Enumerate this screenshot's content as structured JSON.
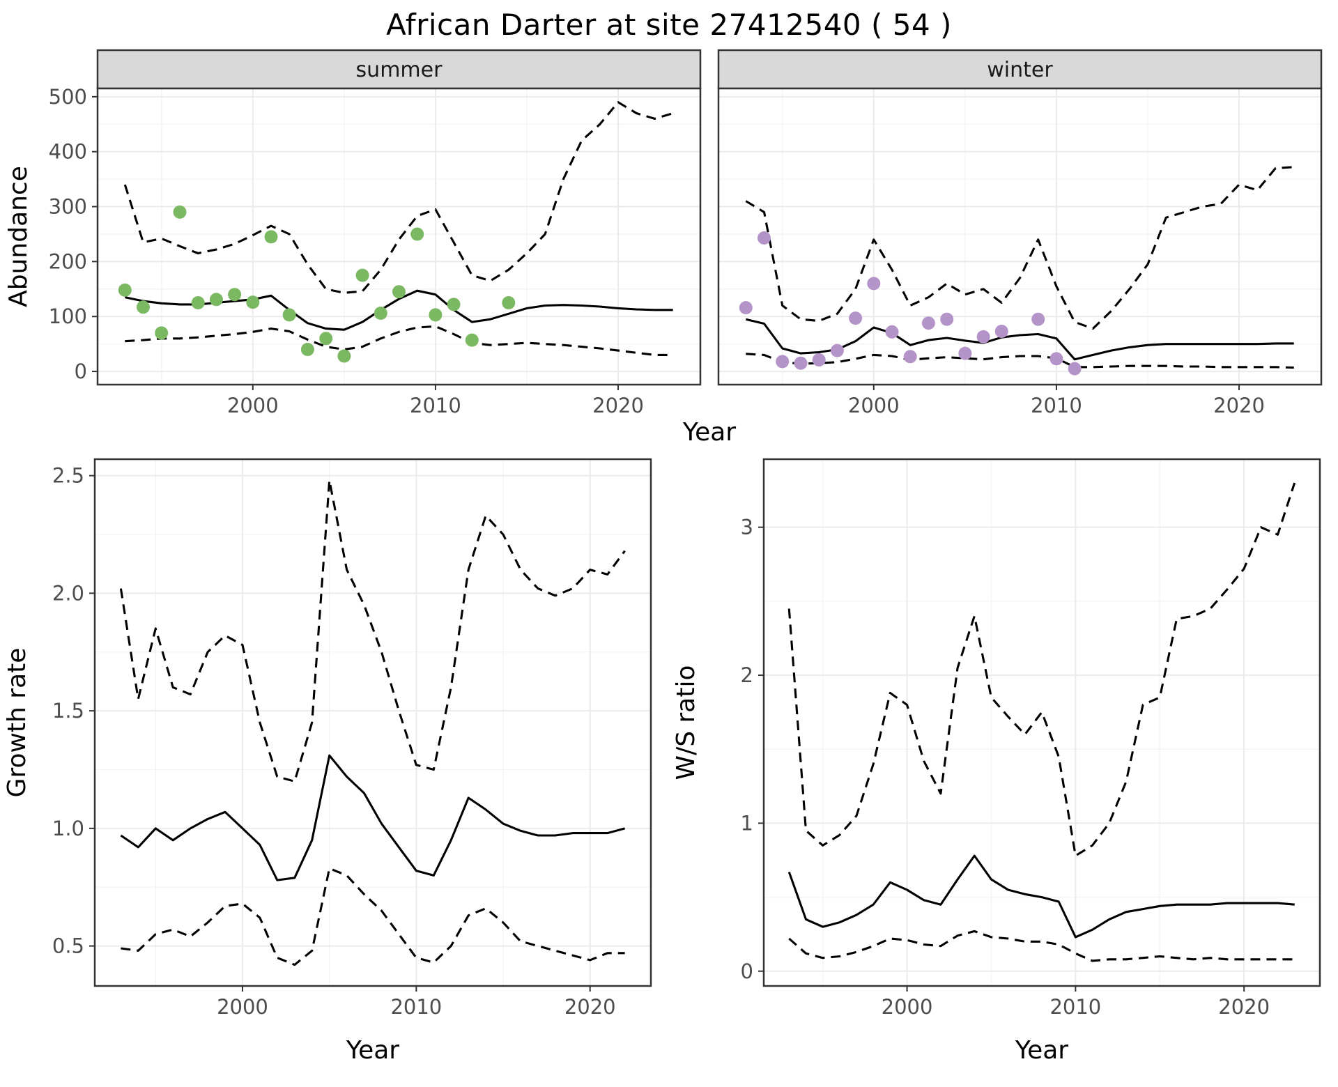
{
  "title": "African Darter at site 27412540 ( 54 )",
  "palette": {
    "summer_point": "#7ab861",
    "winter_point": "#b494c8",
    "line": "#000000",
    "panel_bg": "#ffffff",
    "panel_border": "#333333",
    "strip_bg": "#d9d9d9",
    "strip_text": "#1a1a1a",
    "grid_major": "#ebebeb",
    "grid_minor": "#f3f3f3",
    "tick_mark": "#333333",
    "tick_label": "#4d4d4d",
    "axis_title": "#000000"
  },
  "chart_data": [
    {
      "id": "abundance",
      "type": "line",
      "xlabel": "Year",
      "ylabel": "Abundance",
      "xlim": [
        1991.5,
        2024.5
      ],
      "ylim": [
        -24,
        515
      ],
      "xticks": [
        2000,
        2010,
        2020
      ],
      "xtick_labels": [
        "2000",
        "2010",
        "2020"
      ],
      "yticks": [
        0,
        100,
        200,
        300,
        400,
        500
      ],
      "ytick_labels": [
        "0",
        "100",
        "200",
        "300",
        "400",
        "500"
      ],
      "grid": "on",
      "legend": "none",
      "x_fit": [
        1993,
        1994,
        1995,
        1996,
        1997,
        1998,
        1999,
        2000,
        2001,
        2002,
        2003,
        2004,
        2005,
        2006,
        2007,
        2008,
        2009,
        2010,
        2011,
        2012,
        2013,
        2014,
        2015,
        2016,
        2017,
        2018,
        2019,
        2020,
        2021,
        2022,
        2023
      ],
      "facets": [
        {
          "label": "summer",
          "point_color": "summer_point",
          "points": {
            "x": [
              1993,
              1994,
              1995,
              1996,
              1997,
              1998,
              1999,
              2000,
              2001,
              2002,
              2003,
              2004,
              2005,
              2006,
              2007,
              2008,
              2009,
              2010,
              2011,
              2012,
              2014
            ],
            "y": [
              148,
              117,
              70,
              290,
              125,
              131,
              140,
              126,
              245,
              103,
              40,
              60,
              28,
              175,
              106,
              145,
              250,
              103,
              122,
              57,
              125
            ]
          },
          "series": [
            {
              "name": "median",
              "style": "solid",
              "y": [
                135,
                128,
                124,
                122,
                122,
                125,
                128,
                131,
                138,
                112,
                88,
                78,
                76,
                90,
                112,
                132,
                147,
                140,
                112,
                90,
                95,
                105,
                115,
                120,
                121,
                120,
                118,
                115,
                113,
                112,
                112
              ]
            },
            {
              "name": "upper_ci",
              "style": "dashed",
              "y": [
                340,
                235,
                242,
                228,
                215,
                222,
                232,
                248,
                265,
                250,
                195,
                150,
                143,
                146,
                185,
                240,
                283,
                295,
                235,
                175,
                165,
                185,
                215,
                250,
                350,
                420,
                450,
                490,
                470,
                460,
                470
              ]
            },
            {
              "name": "lower_ci",
              "style": "dashed",
              "y": [
                55,
                57,
                60,
                60,
                62,
                65,
                68,
                72,
                78,
                73,
                58,
                45,
                40,
                45,
                60,
                72,
                80,
                82,
                68,
                52,
                48,
                50,
                52,
                50,
                48,
                45,
                42,
                38,
                34,
                30,
                30
              ]
            }
          ]
        },
        {
          "label": "winter",
          "point_color": "winter_point",
          "points": {
            "x": [
              1993,
              1994,
              1995,
              1996,
              1997,
              1998,
              1999,
              2000,
              2001,
              2002,
              2003,
              2004,
              2005,
              2006,
              2007,
              2009,
              2010,
              2011
            ],
            "y": [
              116,
              243,
              18,
              15,
              21,
              38,
              97,
              160,
              72,
              27,
              88,
              95,
              33,
              63,
              73,
              95,
              23,
              5
            ]
          },
          "series": [
            {
              "name": "median",
              "style": "solid",
              "y": [
                95,
                87,
                42,
                33,
                35,
                40,
                55,
                80,
                70,
                48,
                57,
                61,
                56,
                52,
                62,
                66,
                68,
                60,
                22,
                30,
                38,
                44,
                48,
                50,
                50,
                50,
                50,
                50,
                50,
                51,
                51
              ]
            },
            {
              "name": "upper_ci",
              "style": "dashed",
              "y": [
                310,
                290,
                120,
                95,
                92,
                105,
                150,
                240,
                185,
                120,
                135,
                160,
                140,
                150,
                125,
                170,
                240,
                155,
                90,
                78,
                110,
                150,
                195,
                280,
                290,
                300,
                305,
                340,
                330,
                370,
                372
              ]
            },
            {
              "name": "lower_ci",
              "style": "dashed",
              "y": [
                32,
                30,
                17,
                14,
                15,
                17,
                23,
                30,
                28,
                21,
                24,
                26,
                24,
                22,
                26,
                28,
                28,
                24,
                8,
                8,
                9,
                10,
                10,
                10,
                9,
                9,
                8,
                8,
                8,
                8,
                7
              ]
            }
          ]
        }
      ]
    },
    {
      "id": "growth_rate",
      "type": "line",
      "xlabel": "Year",
      "ylabel": "Growth rate",
      "xlim": [
        1991.5,
        2023.5
      ],
      "ylim": [
        0.33,
        2.57
      ],
      "xticks": [
        2000,
        2010,
        2020
      ],
      "xtick_labels": [
        "2000",
        "2010",
        "2020"
      ],
      "yticks": [
        0.5,
        1.0,
        1.5,
        2.0,
        2.5
      ],
      "ytick_labels": [
        "0.5",
        "1.0",
        "1.5",
        "2.0",
        "2.5"
      ],
      "grid": "on",
      "legend": "none",
      "x": [
        1993,
        1994,
        1995,
        1996,
        1997,
        1998,
        1999,
        2000,
        2001,
        2002,
        2003,
        2004,
        2005,
        2006,
        2007,
        2008,
        2009,
        2010,
        2011,
        2012,
        2013,
        2014,
        2015,
        2016,
        2017,
        2018,
        2019,
        2020,
        2021,
        2022
      ],
      "series": [
        {
          "name": "median",
          "style": "solid",
          "y": [
            0.97,
            0.92,
            1.0,
            0.95,
            1.0,
            1.04,
            1.07,
            1.0,
            0.93,
            0.78,
            0.79,
            0.95,
            1.31,
            1.22,
            1.15,
            1.02,
            0.92,
            0.82,
            0.8,
            0.95,
            1.13,
            1.08,
            1.02,
            0.99,
            0.97,
            0.97,
            0.98,
            0.98,
            0.98,
            1.0
          ]
        },
        {
          "name": "upper_ci",
          "style": "dashed",
          "y": [
            2.02,
            1.55,
            1.85,
            1.6,
            1.57,
            1.75,
            1.82,
            1.78,
            1.45,
            1.22,
            1.2,
            1.45,
            2.48,
            2.1,
            1.95,
            1.75,
            1.5,
            1.27,
            1.25,
            1.6,
            2.1,
            2.33,
            2.25,
            2.1,
            2.02,
            1.99,
            2.02,
            2.1,
            2.08,
            2.18
          ]
        },
        {
          "name": "lower_ci",
          "style": "dashed",
          "y": [
            0.49,
            0.48,
            0.55,
            0.57,
            0.54,
            0.6,
            0.67,
            0.68,
            0.62,
            0.45,
            0.42,
            0.48,
            0.83,
            0.8,
            0.72,
            0.65,
            0.55,
            0.45,
            0.43,
            0.5,
            0.63,
            0.66,
            0.6,
            0.52,
            0.5,
            0.48,
            0.46,
            0.44,
            0.47,
            0.47
          ]
        }
      ]
    },
    {
      "id": "ws_ratio",
      "type": "line",
      "xlabel": "Year",
      "ylabel": "W/S ratio",
      "xlim": [
        1991.5,
        2024.5
      ],
      "ylim": [
        -0.1,
        3.46
      ],
      "xticks": [
        2000,
        2010,
        2020
      ],
      "xtick_labels": [
        "2000",
        "2010",
        "2020"
      ],
      "yticks": [
        0,
        1,
        2,
        3
      ],
      "ytick_labels": [
        "0",
        "1",
        "2",
        "3"
      ],
      "grid": "on",
      "legend": "none",
      "x": [
        1993,
        1994,
        1995,
        1996,
        1997,
        1998,
        1999,
        2000,
        2001,
        2002,
        2003,
        2004,
        2005,
        2006,
        2007,
        2008,
        2009,
        2010,
        2011,
        2012,
        2013,
        2014,
        2015,
        2016,
        2017,
        2018,
        2019,
        2020,
        2021,
        2022,
        2023
      ],
      "series": [
        {
          "name": "median",
          "style": "solid",
          "y": [
            0.67,
            0.35,
            0.3,
            0.33,
            0.38,
            0.45,
            0.6,
            0.55,
            0.48,
            0.45,
            0.62,
            0.78,
            0.62,
            0.55,
            0.52,
            0.5,
            0.47,
            0.23,
            0.28,
            0.35,
            0.4,
            0.42,
            0.44,
            0.45,
            0.45,
            0.45,
            0.46,
            0.46,
            0.46,
            0.46,
            0.45
          ]
        },
        {
          "name": "upper_ci",
          "style": "dashed",
          "y": [
            2.45,
            0.95,
            0.85,
            0.92,
            1.05,
            1.4,
            1.88,
            1.8,
            1.42,
            1.2,
            2.05,
            2.4,
            1.85,
            1.72,
            1.6,
            1.75,
            1.45,
            0.78,
            0.85,
            1.0,
            1.28,
            1.8,
            1.85,
            2.38,
            2.4,
            2.45,
            2.58,
            2.72,
            3.0,
            2.95,
            3.3
          ]
        },
        {
          "name": "lower_ci",
          "style": "dashed",
          "y": [
            0.22,
            0.12,
            0.09,
            0.1,
            0.13,
            0.17,
            0.22,
            0.21,
            0.18,
            0.17,
            0.24,
            0.27,
            0.23,
            0.22,
            0.2,
            0.2,
            0.18,
            0.12,
            0.07,
            0.08,
            0.08,
            0.09,
            0.1,
            0.09,
            0.08,
            0.09,
            0.08,
            0.08,
            0.08,
            0.08,
            0.08
          ]
        }
      ]
    }
  ]
}
